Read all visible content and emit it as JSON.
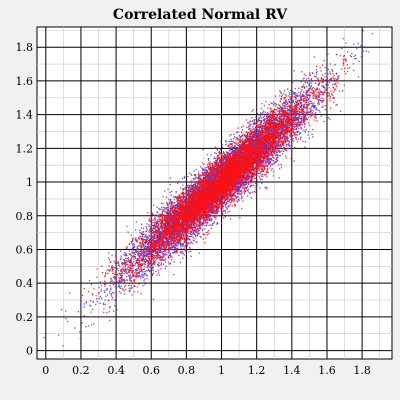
{
  "chart_data": {
    "type": "scatter",
    "title": "Correlated Normal RV",
    "xlabel": "",
    "ylabel": "",
    "xlim": [
      -0.05,
      1.97
    ],
    "ylim": [
      -0.05,
      1.92
    ],
    "xticks": [
      0,
      0.2,
      0.4,
      0.6,
      0.8,
      1,
      1.2,
      1.4,
      1.6,
      1.8
    ],
    "xtick_labels": [
      "0",
      "0.2",
      "0.4",
      "0.6",
      "0.8",
      "1",
      "1.2",
      "1.4",
      "1.6",
      "1.8"
    ],
    "yticks": [
      0,
      0.2,
      0.4,
      0.6,
      0.8,
      1,
      1.2,
      1.4,
      1.6,
      1.8
    ],
    "ytick_labels": [
      "0",
      "0.2",
      "0.4",
      "0.6",
      "0.8",
      "1",
      "1.2",
      "1.4",
      "1.6",
      "1.8"
    ],
    "grid": true,
    "series": [
      {
        "color": "#2f3cff",
        "mean": [
          1.0,
          1.0
        ],
        "std": [
          0.25,
          0.25
        ],
        "correlation": 0.95,
        "approx_count": 8000
      },
      {
        "color": "#ff1010",
        "mean": [
          1.0,
          1.0
        ],
        "std": [
          0.25,
          0.25
        ],
        "correlation": 0.95,
        "approx_count": 8000
      }
    ]
  }
}
